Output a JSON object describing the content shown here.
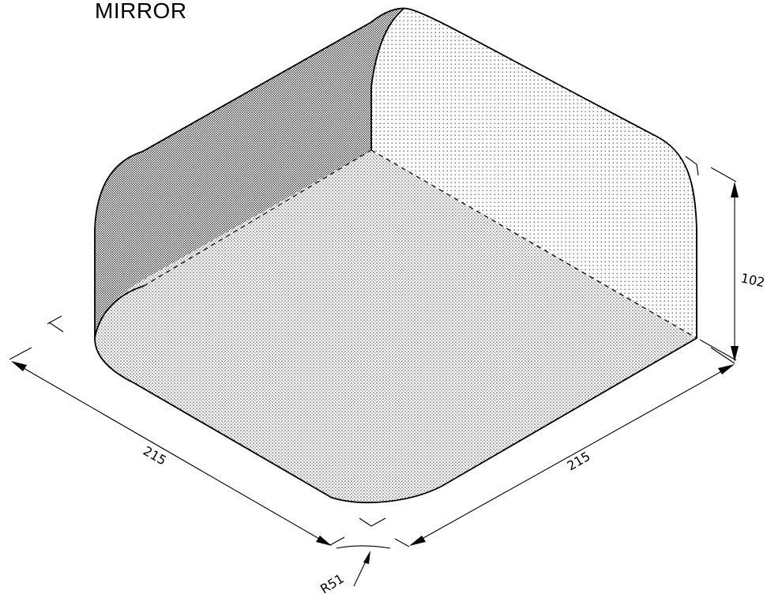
{
  "title": "MIRROR",
  "dimensions": {
    "length_left": "215",
    "length_right": "215",
    "height": "102",
    "radius": "R51"
  }
}
